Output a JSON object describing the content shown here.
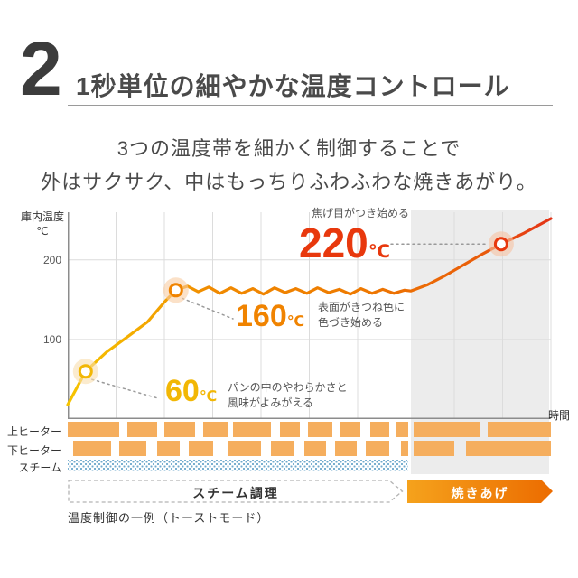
{
  "header": {
    "number": "2",
    "title": "1秒単位の細やかな温度コントロール"
  },
  "subtitle": {
    "line1": "3つの温度帯を細かく制御することで",
    "line2": "外はサクサク、中はもっちりふわふわな焼きあがり。"
  },
  "chart_data": {
    "type": "line",
    "title": "温度制御の一例（トーストモード）",
    "xlabel": "時間",
    "ylabel_line1": "庫内温度",
    "ylabel_line2": "℃",
    "ylim": [
      0,
      260
    ],
    "yticks": [
      200,
      100
    ],
    "grid_vertical_divisions": 10,
    "bake_phase_start": 0.71,
    "bake_bg_color": "#ececec",
    "line_gradient": [
      [
        0,
        "#f6c400"
      ],
      [
        0.12,
        "#f4b000"
      ],
      [
        0.3,
        "#f08a00"
      ],
      [
        0.6,
        "#ee7a00"
      ],
      [
        0.85,
        "#e95d0a"
      ],
      [
        1,
        "#e43317"
      ]
    ],
    "series": [
      {
        "name": "庫内温度",
        "points": [
          [
            0,
            18
          ],
          [
            0.037,
            60
          ],
          [
            0.08,
            84
          ],
          [
            0.125,
            104
          ],
          [
            0.165,
            122
          ],
          [
            0.2,
            147
          ],
          [
            0.224,
            162
          ],
          [
            0.248,
            167
          ],
          [
            0.27,
            160
          ],
          [
            0.292,
            166
          ],
          [
            0.315,
            158
          ],
          [
            0.338,
            165
          ],
          [
            0.36,
            158
          ],
          [
            0.383,
            164
          ],
          [
            0.405,
            157
          ],
          [
            0.428,
            165
          ],
          [
            0.45,
            159
          ],
          [
            0.472,
            164
          ],
          [
            0.495,
            158
          ],
          [
            0.517,
            165
          ],
          [
            0.54,
            159
          ],
          [
            0.562,
            163
          ],
          [
            0.585,
            157
          ],
          [
            0.607,
            164
          ],
          [
            0.63,
            158
          ],
          [
            0.652,
            163
          ],
          [
            0.675,
            158
          ],
          [
            0.697,
            162
          ],
          [
            0.71,
            161
          ],
          [
            0.745,
            169
          ],
          [
            0.78,
            180
          ],
          [
            0.82,
            194
          ],
          [
            0.86,
            208
          ],
          [
            0.897,
            220
          ],
          [
            0.945,
            234
          ],
          [
            1,
            252
          ]
        ]
      }
    ],
    "markers": [
      {
        "t": 0.037,
        "temp": 60,
        "color": "#f2b705",
        "glow": "#f8ddad"
      },
      {
        "t": 0.224,
        "temp": 162,
        "color": "#f08300",
        "glow": "#f8cda4"
      },
      {
        "t": 0.897,
        "temp": 220,
        "color": "#e8380d",
        "glow": "#f6c3a4"
      }
    ],
    "annotations": [
      {
        "value": "60",
        "unit": "℃",
        "color": "#f2b705",
        "note_line1": "パンの中のやわらかさと",
        "note_line2": "風味がよみがえる"
      },
      {
        "value": "160",
        "unit": "℃",
        "color": "#f08300",
        "note_line1": "表面がきつね色に",
        "note_line2": "色づき始める"
      },
      {
        "value": "220",
        "unit": "℃",
        "color": "#e8380d",
        "note_line1": "焦げ目がつき始める",
        "note_line2": ""
      }
    ]
  },
  "heaters": {
    "block_color": "#f5ae5e",
    "steam_color": "#6fa9cc",
    "rows": [
      {
        "label": "上ヒーター",
        "type": "block",
        "segments": [
          [
            0,
            0.107
          ],
          [
            0.123,
            0.185
          ],
          [
            0.2,
            0.264
          ],
          [
            0.28,
            0.331
          ],
          [
            0.342,
            0.421
          ],
          [
            0.439,
            0.48
          ],
          [
            0.497,
            0.548
          ],
          [
            0.563,
            0.606
          ],
          [
            0.626,
            0.666
          ],
          [
            0.68,
            0.705
          ],
          [
            0.716,
            0.852
          ],
          [
            0.869,
            1
          ]
        ]
      },
      {
        "label": "下ヒーター",
        "type": "block",
        "segments": [
          [
            0.012,
            0.09
          ],
          [
            0.107,
            0.162
          ],
          [
            0.185,
            0.232
          ],
          [
            0.25,
            0.3
          ],
          [
            0.331,
            0.4
          ],
          [
            0.421,
            0.468
          ],
          [
            0.49,
            0.535
          ],
          [
            0.553,
            0.598
          ],
          [
            0.617,
            0.666
          ],
          [
            0.69,
            0.705
          ],
          [
            0.716,
            0.8
          ],
          [
            0.825,
            1
          ]
        ]
      },
      {
        "label": "スチーム",
        "type": "dots",
        "segments": [
          [
            0,
            0.705
          ]
        ]
      }
    ]
  },
  "phases": {
    "steam_label": "スチーム調理",
    "bake_label": "焼きあげ",
    "bake_gradient": [
      "#f5a21c",
      "#ec6c00"
    ]
  }
}
